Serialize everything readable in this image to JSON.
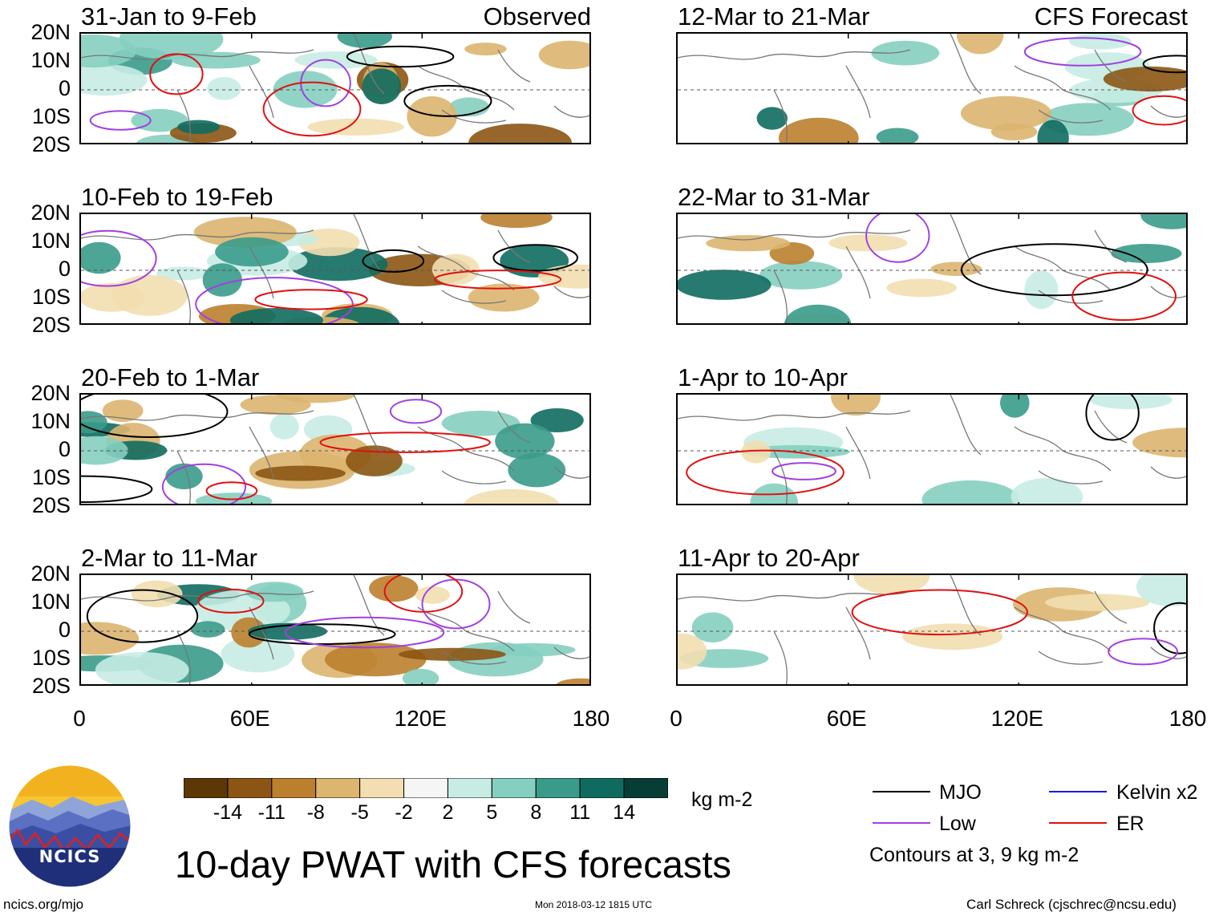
{
  "chart_data": {
    "type": "heatmap",
    "title": "10-day PWAT with CFS forecasts",
    "units": "kg m-2",
    "lat_ticks": [
      "20N",
      "10N",
      "0",
      "10S",
      "20S"
    ],
    "lon_ticks": [
      "0",
      "60E",
      "120E",
      "180"
    ],
    "lat_range": [
      -20,
      20
    ],
    "lon_range": [
      0,
      180
    ],
    "colorbar": {
      "tick_labels": [
        "-14",
        "-11",
        "-8",
        "-5",
        "-2",
        "2",
        "5",
        "8",
        "11",
        "14"
      ],
      "colors": [
        "#5c3806",
        "#8c5513",
        "#bb7f2e",
        "#dcb56f",
        "#f2deb0",
        "#f5f5f5",
        "#c7ece3",
        "#85cfc0",
        "#3a9b8b",
        "#0f6b5f",
        "#063d35"
      ]
    },
    "columns": [
      {
        "name": "Observed",
        "panels": [
          {
            "title": "31-Jan to 9-Feb",
            "tag": "Observed"
          },
          {
            "title": "10-Feb to 19-Feb",
            "tag": ""
          },
          {
            "title": "20-Feb to 1-Mar",
            "tag": ""
          },
          {
            "title": "2-Mar to 11-Mar",
            "tag": ""
          }
        ]
      },
      {
        "name": "CFS Forecast",
        "panels": [
          {
            "title": "12-Mar to 21-Mar",
            "tag": "CFS Forecast"
          },
          {
            "title": "22-Mar to 31-Mar",
            "tag": ""
          },
          {
            "title": "1-Apr to 10-Apr",
            "tag": ""
          },
          {
            "title": "11-Apr to 20-Apr",
            "tag": ""
          }
        ]
      }
    ],
    "legend": {
      "items": [
        {
          "label": "MJO",
          "color": "#000000"
        },
        {
          "label": "Kelvin x2",
          "color": "#1a1adc"
        },
        {
          "label": "Low",
          "color": "#a040e0"
        },
        {
          "label": "ER",
          "color": "#e01010"
        }
      ],
      "note": "Contours at 3, 9 kg m-2"
    }
  },
  "footer": {
    "logo_text": "NCICS",
    "website": "ncics.org/mjo",
    "timestamp": "Mon 2018-03-12 1815 UTC",
    "author": "Carl Schreck (cjschrec@ncsu.edu)"
  }
}
